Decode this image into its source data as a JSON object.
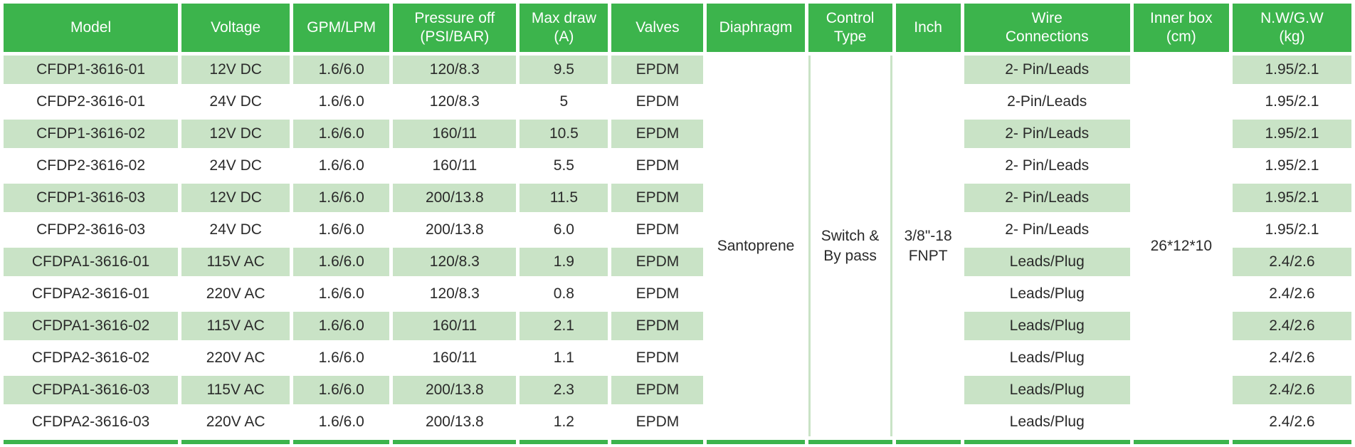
{
  "table": {
    "columns": [
      {
        "id": "model",
        "label": "Model"
      },
      {
        "id": "voltage",
        "label": "Voltage"
      },
      {
        "id": "gpm_lpm",
        "label": "GPM/LPM"
      },
      {
        "id": "pressure_off",
        "label": "Pressure off\n(PSI/BAR)"
      },
      {
        "id": "max_draw",
        "label": "Max draw\n(A)"
      },
      {
        "id": "valves",
        "label": "Valves"
      },
      {
        "id": "diaphragm",
        "label": "Diaphragm",
        "merged": true
      },
      {
        "id": "control_type",
        "label": "Control\nType",
        "merged": true
      },
      {
        "id": "inch",
        "label": "Inch",
        "merged": true
      },
      {
        "id": "wire_connections",
        "label": "Wire\nConnections"
      },
      {
        "id": "inner_box",
        "label": "Inner box\n(cm)",
        "merged": true
      },
      {
        "id": "nw_gw",
        "label": "N.W/G.W\n(kg)"
      }
    ],
    "merged": {
      "diaphragm": "Santoprene",
      "control_type": "Switch &\nBy pass",
      "inch": "3/8\"-18\nFNPT",
      "inner_box": "26*12*10"
    },
    "rows": [
      {
        "model": "CFDP1-3616-01",
        "voltage": "12V DC",
        "gpm_lpm": "1.6/6.0",
        "pressure_off": "120/8.3",
        "max_draw": "9.5",
        "valves": "EPDM",
        "wire_connections": "2- Pin/Leads",
        "nw_gw": "1.95/2.1"
      },
      {
        "model": "CFDP2-3616-01",
        "voltage": "24V DC",
        "gpm_lpm": "1.6/6.0",
        "pressure_off": "120/8.3",
        "max_draw": "5",
        "valves": "EPDM",
        "wire_connections": "2-Pin/Leads",
        "nw_gw": "1.95/2.1"
      },
      {
        "model": "CFDP1-3616-02",
        "voltage": "12V DC",
        "gpm_lpm": "1.6/6.0",
        "pressure_off": "160/11",
        "max_draw": "10.5",
        "valves": "EPDM",
        "wire_connections": "2- Pin/Leads",
        "nw_gw": "1.95/2.1"
      },
      {
        "model": "CFDP2-3616-02",
        "voltage": "24V DC",
        "gpm_lpm": "1.6/6.0",
        "pressure_off": "160/11",
        "max_draw": "5.5",
        "valves": "EPDM",
        "wire_connections": "2- Pin/Leads",
        "nw_gw": "1.95/2.1"
      },
      {
        "model": "CFDP1-3616-03",
        "voltage": "12V DC",
        "gpm_lpm": "1.6/6.0",
        "pressure_off": "200/13.8",
        "max_draw": "11.5",
        "valves": "EPDM",
        "wire_connections": "2- Pin/Leads",
        "nw_gw": "1.95/2.1"
      },
      {
        "model": "CFDP2-3616-03",
        "voltage": "24V DC",
        "gpm_lpm": "1.6/6.0",
        "pressure_off": "200/13.8",
        "max_draw": "6.0",
        "valves": "EPDM",
        "wire_connections": "2- Pin/Leads",
        "nw_gw": "1.95/2.1"
      },
      {
        "model": "CFDPA1-3616-01",
        "voltage": "115V AC",
        "gpm_lpm": "1.6/6.0",
        "pressure_off": "120/8.3",
        "max_draw": "1.9",
        "valves": "EPDM",
        "wire_connections": "Leads/Plug",
        "nw_gw": "2.4/2.6"
      },
      {
        "model": "CFDPA2-3616-01",
        "voltage": "220V AC",
        "gpm_lpm": "1.6/6.0",
        "pressure_off": "120/8.3",
        "max_draw": "0.8",
        "valves": "EPDM",
        "wire_connections": "Leads/Plug",
        "nw_gw": "2.4/2.6"
      },
      {
        "model": "CFDPA1-3616-02",
        "voltage": "115V AC",
        "gpm_lpm": "1.6/6.0",
        "pressure_off": "160/11",
        "max_draw": "2.1",
        "valves": "EPDM",
        "wire_connections": "Leads/Plug",
        "nw_gw": "2.4/2.6"
      },
      {
        "model": "CFDPA2-3616-02",
        "voltage": "220V AC",
        "gpm_lpm": "1.6/6.0",
        "pressure_off": "160/11",
        "max_draw": "1.1",
        "valves": "EPDM",
        "wire_connections": "Leads/Plug",
        "nw_gw": "2.4/2.6"
      },
      {
        "model": "CFDPA1-3616-03",
        "voltage": "115V AC",
        "gpm_lpm": "1.6/6.0",
        "pressure_off": "200/13.8",
        "max_draw": "2.3",
        "valves": "EPDM",
        "wire_connections": "Leads/Plug",
        "nw_gw": "2.4/2.6"
      },
      {
        "model": "CFDPA2-3616-03",
        "voltage": "220V AC",
        "gpm_lpm": "1.6/6.0",
        "pressure_off": "200/13.8",
        "max_draw": "1.2",
        "valves": "EPDM",
        "wire_connections": "Leads/Plug",
        "nw_gw": "2.4/2.6"
      }
    ]
  },
  "colors": {
    "header_green": "#3cb44c",
    "row_green": "#c9e3c6",
    "line_green": "#c9e3c6",
    "bottom_bar_green": "#3cb44c",
    "text": "#2a2a2a",
    "header_text": "#ffffff"
  }
}
